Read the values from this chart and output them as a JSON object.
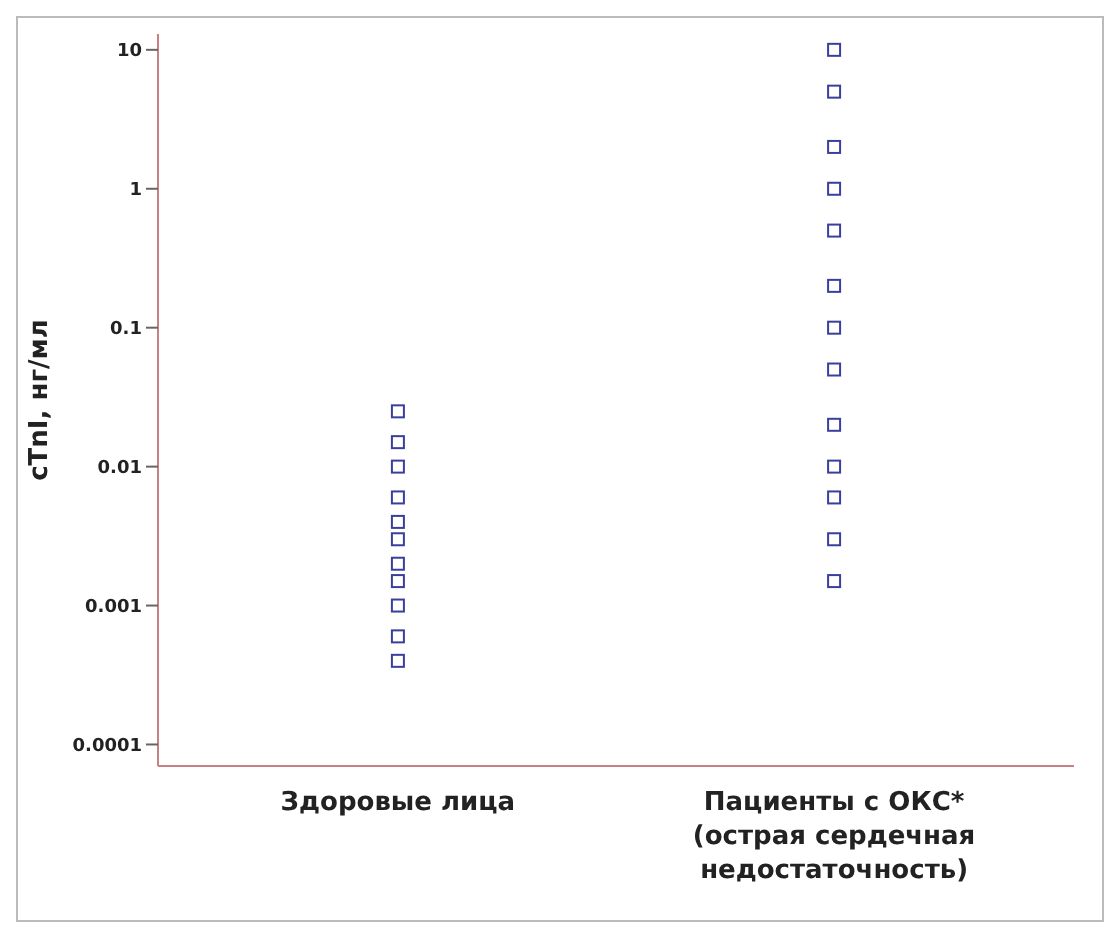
{
  "chart_data": {
    "type": "scatter",
    "ylabel": "cTnI, нг/мл",
    "categories": [
      "Здоровые лица",
      "Пациенты с ОКС* (острая сердечная недостаточность)"
    ],
    "series": [
      {
        "color": "#3b3f9c",
        "x": [
          "Здоровые лица",
          "Здоровые лица",
          "Здоровые лица",
          "Здоровые лица",
          "Здоровые лица",
          "Здоровые лица",
          "Здоровые лица",
          "Здоровые лица",
          "Здоровые лица",
          "Здоровые лица",
          "Здоровые лица"
        ],
        "values": [
          0.0004,
          0.0006,
          0.001,
          0.0015,
          0.002,
          0.003,
          0.004,
          0.006,
          0.01,
          0.015,
          0.025
        ]
      },
      {
        "color": "#3b3f9c",
        "x": [
          "Пациенты с ОКС* (острая сердечная недостаточность)",
          "Пациенты с ОКС* (острая сердечная недостаточность)",
          "Пациенты с ОКС* (острая сердечная недостаточность)",
          "Пациенты с ОКС* (острая сердечная недостаточность)",
          "Пациенты с ОКС* (острая сердечная недостаточность)",
          "Пациенты с ОКС* (острая сердечная недостаточность)",
          "Пациенты с ОКС* (острая сердечная недостаточность)",
          "Пациенты с ОКС* (острая сердечная недостаточность)",
          "Пациенты с ОКС* (острая сердечная недостаточность)",
          "Пациенты с ОКС* (острая сердечная недостаточность)",
          "Пациенты с ОКС* (острая сердечная недостаточность)",
          "Пациенты с ОКС* (острая сердечная недостаточность)",
          "Пациенты с ОКС* (острая сердечная недостаточность)"
        ],
        "values": [
          0.0015,
          0.003,
          0.006,
          0.01,
          0.02,
          0.05,
          0.1,
          0.2,
          0.5,
          1,
          2,
          5,
          10
        ]
      }
    ],
    "log": "y",
    "ylim": [
      7e-05,
      13
    ],
    "yticks": [
      0.0001,
      0.001,
      0.01,
      0.1,
      1,
      10
    ],
    "grid": false,
    "legend": false,
    "marker": "square"
  }
}
